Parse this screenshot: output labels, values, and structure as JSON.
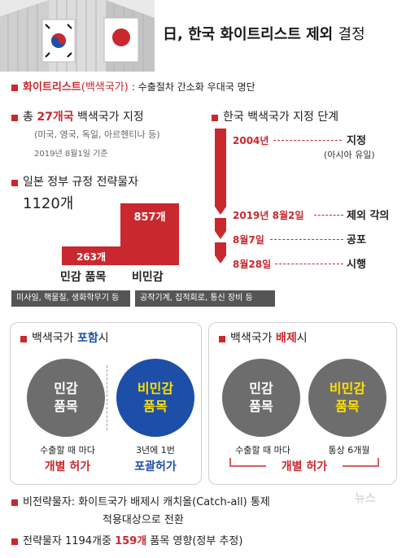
{
  "header": {
    "title_main": "日, 한국 화이트리스트 제외",
    "title_sub": "결정"
  },
  "whitelist": {
    "term": "화이트리스트",
    "paren": "(백색국가)",
    "desc": ": 수출절차 간소화 우대국 명단"
  },
  "total": {
    "prefix": "총",
    "count": "27개국",
    "suffix": "백색국가 지정",
    "countries": "(미국, 영국, 독일, 아르헨티나 등)",
    "basis": "2019년 8월1일 기준"
  },
  "strategic": {
    "title": "일본 정부 규정 전략물자",
    "total": "1120개",
    "civil": {
      "value": 263,
      "value_label": "263개",
      "name": "민감 품목",
      "examples": "미사일, 핵물질, 생화학무기 등"
    },
    "noncivil": {
      "value": 857,
      "value_label": "857개",
      "name": "비민감",
      "examples": "공작기계, 집적회로, 통신 장비 등"
    }
  },
  "timeline": {
    "title": "한국 백색국가 지정 단계",
    "events": [
      {
        "date": "2004년",
        "label": "지정",
        "note": "(아시아 유일)"
      },
      {
        "date": "2019년 8월2일",
        "label": "제외 각의"
      },
      {
        "date": "8월7일",
        "label": "공포"
      },
      {
        "date": "8월28일",
        "label": "시행"
      }
    ]
  },
  "panel_include": {
    "title_prefix": "백색국가",
    "title_key": "포함",
    "title_suffix": "시",
    "left_circle": [
      "민감",
      "품목"
    ],
    "left_desc": "수출할 때 마다",
    "left_result": "개별 허가",
    "right_circle": [
      "비민감",
      "품목"
    ],
    "right_desc": "3년에 1번",
    "right_result": "포괄허가"
  },
  "panel_exclude": {
    "title_prefix": "백색국가",
    "title_key": "배제",
    "title_suffix": "시",
    "left_circle": [
      "민감",
      "품목"
    ],
    "left_desc": "수출할 때 마다",
    "right_circle": [
      "비민감",
      "품목"
    ],
    "right_desc": "통상 6개월",
    "result": "개별 허가"
  },
  "notes": {
    "line1a": "비전략물자:  화이트국가 배제시 캐치올(Catch-all) 통제",
    "line1b": "적용대상으로 전환",
    "line2_prefix": "전략물자 1194개중",
    "line2_key": "159개",
    "line2_suffix": "품목 영향(정부 추정)"
  },
  "watermark": "뉴스",
  "colors": {
    "accent_red": "#c8282e",
    "accent_blue": "#1d4fa8",
    "yellow": "#ffe100",
    "gray": "#6d6d6d"
  }
}
